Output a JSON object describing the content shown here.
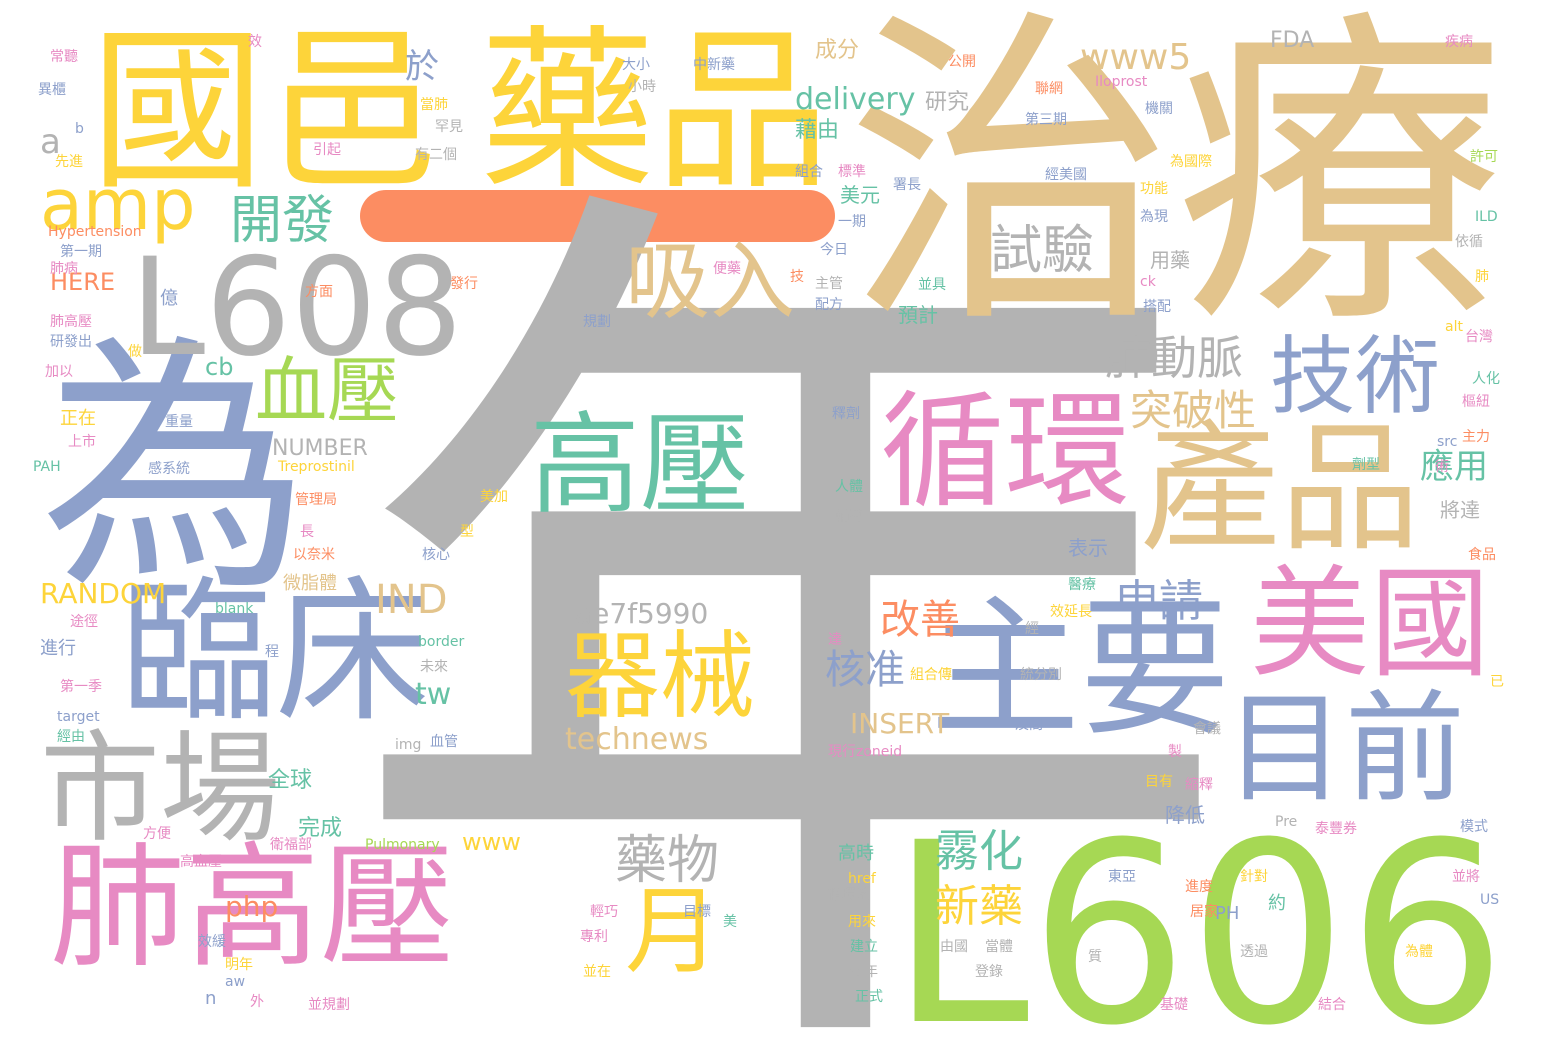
{
  "palette": {
    "gold": "#e3c48c",
    "yellow": "#fdd43a",
    "gray": "#b3b3b3",
    "blue": "#8da0cb",
    "pink": "#e78ac3",
    "green": "#a6d854",
    "teal": "#66c2a5",
    "orange": "#fc8d62"
  },
  "dash_color": "#fc8d62",
  "words": [
    {
      "text": "年",
      "color": "#b3b3b3"
    },
    {
      "text": "治療",
      "color": "#e3c48c"
    },
    {
      "text": "L606",
      "color": "#a6d854"
    },
    {
      "text": "國邑",
      "color": "#fdd43a"
    },
    {
      "text": "藥品",
      "color": "#fdd43a"
    },
    {
      "text": "為",
      "color": "#8da0cb"
    },
    {
      "text": "L608",
      "color": "#b3b3b3"
    },
    {
      "text": "肺高壓",
      "color": "#e78ac3"
    },
    {
      "text": "產品",
      "color": "#e3c48c"
    },
    {
      "text": "臨床",
      "color": "#8da0cb"
    },
    {
      "text": "主要",
      "color": "#8da0cb"
    },
    {
      "text": "循環",
      "color": "#e78ac3"
    },
    {
      "text": "市場",
      "color": "#b3b3b3"
    },
    {
      "text": "美國",
      "color": "#e78ac3"
    },
    {
      "text": "目前",
      "color": "#8da0cb"
    },
    {
      "text": "高壓",
      "color": "#66c2a5"
    },
    {
      "text": "器械",
      "color": "#fdd43a"
    },
    {
      "text": "技術",
      "color": "#8da0cb"
    },
    {
      "text": "吸入",
      "color": "#e3c48c"
    },
    {
      "text": "血壓",
      "color": "#a6d854"
    },
    {
      "text": "月",
      "color": "#fdd43a"
    },
    {
      "text": "amp",
      "color": "#fdd43a"
    },
    {
      "text": "開發",
      "color": "#66c2a5"
    },
    {
      "text": "試驗",
      "color": "#b3b3b3"
    },
    {
      "text": "藥物",
      "color": "#b3b3b3"
    },
    {
      "text": "霧化",
      "color": "#66c2a5"
    },
    {
      "text": "新藥",
      "color": "#fdd43a"
    },
    {
      "text": "肺動脈",
      "color": "#b3b3b3"
    },
    {
      "text": "突破性",
      "color": "#e3c48c"
    },
    {
      "text": "應用",
      "color": "#66c2a5"
    },
    {
      "text": "申請",
      "color": "#8da0cb"
    },
    {
      "text": "核准",
      "color": "#8da0cb"
    },
    {
      "text": "改善",
      "color": "#fc8d62"
    },
    {
      "text": "IND",
      "color": "#e3c48c"
    },
    {
      "text": "www5",
      "color": "#e3c48c"
    },
    {
      "text": "於",
      "color": "#8da0cb"
    },
    {
      "text": "a",
      "color": "#b3b3b3"
    },
    {
      "text": "delivery",
      "color": "#66c2a5"
    },
    {
      "text": "technews",
      "color": "#e3c48c"
    },
    {
      "text": "ae7f5990",
      "color": "#b3b3b3"
    },
    {
      "text": "tw",
      "color": "#66c2a5"
    },
    {
      "text": "INSERT",
      "color": "#e3c48c"
    },
    {
      "text": "RANDOM",
      "color": "#fdd43a"
    },
    {
      "text": "NUMBER",
      "color": "#b3b3b3"
    },
    {
      "text": "HERE",
      "color": "#fc8d62"
    },
    {
      "text": "www",
      "color": "#fdd43a"
    },
    {
      "text": "php",
      "color": "#fc8d62"
    },
    {
      "text": "cb",
      "color": "#66c2a5"
    },
    {
      "text": "成分",
      "color": "#e3c48c"
    },
    {
      "text": "FDA",
      "color": "#b3b3b3"
    },
    {
      "text": "研究",
      "color": "#b3b3b3"
    },
    {
      "text": "藉由",
      "color": "#66c2a5"
    },
    {
      "text": "美元",
      "color": "#66c2a5"
    },
    {
      "text": "全球",
      "color": "#66c2a5"
    },
    {
      "text": "完成",
      "color": "#66c2a5"
    },
    {
      "text": "表示",
      "color": "#8da0cb"
    },
    {
      "text": "降低",
      "color": "#8da0cb"
    },
    {
      "text": "將達",
      "color": "#b3b3b3"
    },
    {
      "text": "預計",
      "color": "#66c2a5"
    },
    {
      "text": "用藥",
      "color": "#b3b3b3"
    },
    {
      "text": "微脂體",
      "color": "#e3c48c"
    },
    {
      "text": "正在",
      "color": "#fdd43a"
    },
    {
      "text": "進行",
      "color": "#8da0cb"
    },
    {
      "text": "億",
      "color": "#8da0cb"
    },
    {
      "text": "n",
      "color": "#8da0cb"
    },
    {
      "text": "PH",
      "color": "#8da0cb"
    },
    {
      "text": "高時",
      "color": "#66c2a5"
    },
    {
      "text": "約",
      "color": "#66c2a5"
    },
    {
      "text": "常聽",
      "color": "#e78ac3"
    },
    {
      "text": "效",
      "color": "#e78ac3"
    },
    {
      "text": "大小",
      "color": "#8da0cb"
    },
    {
      "text": "中新藥",
      "color": "#8da0cb"
    },
    {
      "text": "公開",
      "color": "#fc8d62"
    },
    {
      "text": "Iloprost",
      "color": "#e78ac3"
    },
    {
      "text": "疾病",
      "color": "#e78ac3"
    },
    {
      "text": "異櫃",
      "color": "#8da0cb"
    },
    {
      "text": "b",
      "color": "#8da0cb"
    },
    {
      "text": "先進",
      "color": "#fdd43a"
    },
    {
      "text": "小時",
      "color": "#b3b3b3"
    },
    {
      "text": "當肺",
      "color": "#fdd43a"
    },
    {
      "text": "罕見",
      "color": "#b3b3b3"
    },
    {
      "text": "引起",
      "color": "#e78ac3"
    },
    {
      "text": "有二個",
      "color": "#b3b3b3"
    },
    {
      "text": "聯網",
      "color": "#fc8d62"
    },
    {
      "text": "第三期",
      "color": "#8da0cb"
    },
    {
      "text": "機關",
      "color": "#8da0cb"
    },
    {
      "text": "為國際",
      "color": "#fdd43a"
    },
    {
      "text": "許可",
      "color": "#a6d854"
    },
    {
      "text": "經美國",
      "color": "#8da0cb"
    },
    {
      "text": "組合",
      "color": "#8da0cb"
    },
    {
      "text": "標準",
      "color": "#e78ac3"
    },
    {
      "text": "署長",
      "color": "#8da0cb"
    },
    {
      "text": "功能",
      "color": "#fdd43a"
    },
    {
      "text": "一期",
      "color": "#8da0cb"
    },
    {
      "text": "Hypertension",
      "color": "#fc8d62"
    },
    {
      "text": "第一期",
      "color": "#8da0cb"
    },
    {
      "text": "為現",
      "color": "#8da0cb"
    },
    {
      "text": "ILD",
      "color": "#66c2a5"
    },
    {
      "text": "依循",
      "color": "#b3b3b3"
    },
    {
      "text": "今日",
      "color": "#8da0cb"
    },
    {
      "text": "肺病",
      "color": "#e78ac3"
    },
    {
      "text": "便藥",
      "color": "#e78ac3"
    },
    {
      "text": "技",
      "color": "#fc8d62"
    },
    {
      "text": "ck",
      "color": "#e78ac3"
    },
    {
      "text": "肺",
      "color": "#fdd43a"
    },
    {
      "text": "發行",
      "color": "#fc8d62"
    },
    {
      "text": "主管",
      "color": "#b3b3b3"
    },
    {
      "text": "配方",
      "color": "#8da0cb"
    },
    {
      "text": "並具",
      "color": "#66c2a5"
    },
    {
      "text": "搭配",
      "color": "#8da0cb"
    },
    {
      "text": "方面",
      "color": "#fc8d62"
    },
    {
      "text": "肺高壓",
      "color": "#e78ac3"
    },
    {
      "text": "研發出",
      "color": "#8da0cb"
    },
    {
      "text": "規劃",
      "color": "#8da0cb"
    },
    {
      "text": "alt",
      "color": "#fdd43a"
    },
    {
      "text": "台灣",
      "color": "#e78ac3"
    },
    {
      "text": "做",
      "color": "#fdd43a"
    },
    {
      "text": "加以",
      "color": "#e78ac3"
    },
    {
      "text": "人化",
      "color": "#66c2a5"
    },
    {
      "text": "樞紐",
      "color": "#e78ac3"
    },
    {
      "text": "重量",
      "color": "#8da0cb"
    },
    {
      "text": "上市",
      "color": "#e78ac3"
    },
    {
      "text": "釋劑",
      "color": "#8da0cb"
    },
    {
      "text": "主力",
      "color": "#fc8d62"
    },
    {
      "text": "src",
      "color": "#8da0cb"
    },
    {
      "text": "PAH",
      "color": "#66c2a5"
    },
    {
      "text": "感系統",
      "color": "#8da0cb"
    },
    {
      "text": "Treprostinil",
      "color": "#fdd43a"
    },
    {
      "text": "劑型",
      "color": "#66c2a5"
    },
    {
      "text": "術",
      "color": "#e78ac3"
    },
    {
      "text": "管理局",
      "color": "#fc8d62"
    },
    {
      "text": "美加",
      "color": "#fdd43a"
    },
    {
      "text": "人體",
      "color": "#66c2a5"
    },
    {
      "text": "輔導",
      "color": "#b3b3b3"
    },
    {
      "text": "長",
      "color": "#e78ac3"
    },
    {
      "text": "型",
      "color": "#fdd43a"
    },
    {
      "text": "以奈米",
      "color": "#fc8d62"
    },
    {
      "text": "核心",
      "color": "#8da0cb"
    },
    {
      "text": "食品",
      "color": "#fc8d62"
    },
    {
      "text": "blank",
      "color": "#66c2a5"
    },
    {
      "text": "途徑",
      "color": "#e78ac3"
    },
    {
      "text": "border",
      "color": "#66c2a5"
    },
    {
      "text": "程",
      "color": "#8da0cb"
    },
    {
      "text": "醫療",
      "color": "#66c2a5"
    },
    {
      "text": "效延長",
      "color": "#fdd43a"
    },
    {
      "text": "未來",
      "color": "#b3b3b3"
    },
    {
      "text": "經",
      "color": "#b3b3b3"
    },
    {
      "text": "達",
      "color": "#e78ac3"
    },
    {
      "text": "組合傳",
      "color": "#fdd43a"
    },
    {
      "text": "統分別",
      "color": "#b3b3b3"
    },
    {
      "text": "已",
      "color": "#fdd43a"
    },
    {
      "text": "第一季",
      "color": "#e78ac3"
    },
    {
      "text": "target",
      "color": "#8da0cb"
    },
    {
      "text": "經由",
      "color": "#66c2a5"
    },
    {
      "text": "img",
      "color": "#b3b3b3"
    },
    {
      "text": "血管",
      "color": "#8da0cb"
    },
    {
      "text": "現行zoneid",
      "color": "#e78ac3"
    },
    {
      "text": "及間",
      "color": "#8da0cb"
    },
    {
      "text": "會議",
      "color": "#b3b3b3"
    },
    {
      "text": "目標",
      "color": "#8da0cb"
    },
    {
      "text": "輕巧",
      "color": "#e78ac3"
    },
    {
      "text": "美",
      "color": "#66c2a5"
    },
    {
      "text": "專利",
      "color": "#e78ac3"
    },
    {
      "text": "並在",
      "color": "#fdd43a"
    },
    {
      "text": "目有",
      "color": "#fdd43a"
    },
    {
      "text": "縮釋",
      "color": "#e78ac3"
    },
    {
      "text": "製",
      "color": "#e78ac3"
    },
    {
      "text": "方便",
      "color": "#e78ac3"
    },
    {
      "text": "衛福部",
      "color": "#e78ac3"
    },
    {
      "text": "Pulmonary",
      "color": "#a6d854"
    },
    {
      "text": "Pre",
      "color": "#b3b3b3"
    },
    {
      "text": "泰豐券",
      "color": "#e78ac3"
    },
    {
      "text": "模式",
      "color": "#8da0cb"
    },
    {
      "text": "高血壓",
      "color": "#e78ac3"
    },
    {
      "text": "進度",
      "color": "#fc8d62"
    },
    {
      "text": "居家",
      "color": "#fc8d62"
    },
    {
      "text": "href",
      "color": "#fdd43a"
    },
    {
      "text": "循環系",
      "color": "#b3b3b3"
    },
    {
      "text": "東亞",
      "color": "#8da0cb"
    },
    {
      "text": "針對",
      "color": "#fdd43a"
    },
    {
      "text": "並將",
      "color": "#e78ac3"
    },
    {
      "text": "US",
      "color": "#8da0cb"
    },
    {
      "text": "效緩",
      "color": "#8da0cb"
    },
    {
      "text": "明年",
      "color": "#fdd43a"
    },
    {
      "text": "aw",
      "color": "#8da0cb"
    },
    {
      "text": "外",
      "color": "#e78ac3"
    },
    {
      "text": "用來",
      "color": "#fdd43a"
    },
    {
      "text": "建立",
      "color": "#66c2a5"
    },
    {
      "text": "由國",
      "color": "#b3b3b3"
    },
    {
      "text": "當體",
      "color": "#b3b3b3"
    },
    {
      "text": "透過",
      "color": "#b3b3b3"
    },
    {
      "text": "今年",
      "color": "#b3b3b3"
    },
    {
      "text": "登錄",
      "color": "#b3b3b3"
    },
    {
      "text": "質",
      "color": "#b3b3b3"
    },
    {
      "text": "為體",
      "color": "#fdd43a"
    },
    {
      "text": "並規劃",
      "color": "#e78ac3"
    },
    {
      "text": "正式",
      "color": "#66c2a5"
    },
    {
      "text": "基礎",
      "color": "#e78ac3"
    },
    {
      "text": "結合",
      "color": "#e78ac3"
    }
  ]
}
